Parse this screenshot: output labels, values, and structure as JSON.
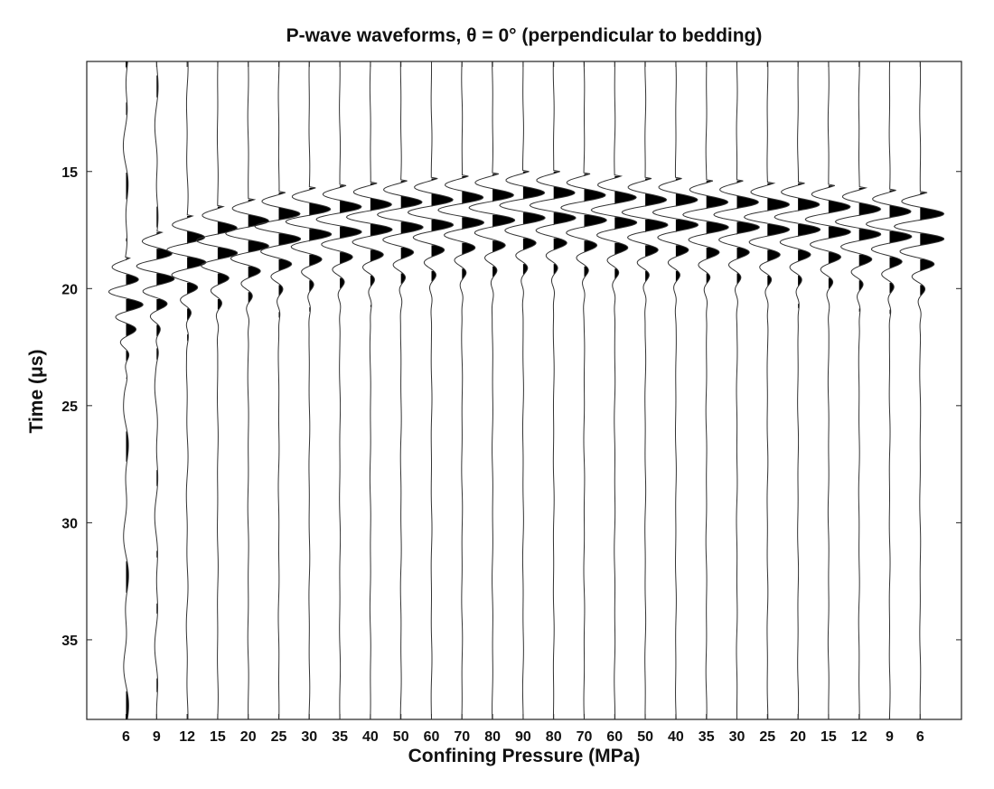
{
  "chart_data": {
    "type": "line",
    "title": "P-wave waveforms, θ = 0° (perpendicular to bedding)",
    "xlabel": "Confining Pressure (MPa)",
    "ylabel": "Time (μs)",
    "y_axis_inverted": true,
    "ylim": [
      10.3,
      38.4
    ],
    "y_ticks": [
      15,
      20,
      25,
      30,
      35
    ],
    "categories": [
      "6",
      "9",
      "12",
      "15",
      "20",
      "25",
      "30",
      "35",
      "40",
      "50",
      "60",
      "70",
      "80",
      "90",
      "80",
      "70",
      "60",
      "50",
      "40",
      "35",
      "30",
      "25",
      "20",
      "15",
      "12",
      "9",
      "6"
    ],
    "first_peak_time_us": [
      19.6,
      18.5,
      17.8,
      17.4,
      17.1,
      16.8,
      16.6,
      16.5,
      16.4,
      16.3,
      16.2,
      16.1,
      16.0,
      15.9,
      15.9,
      16.0,
      16.1,
      16.2,
      16.2,
      16.3,
      16.3,
      16.4,
      16.4,
      16.5,
      16.6,
      16.7,
      16.8
    ],
    "relative_amplitude": [
      0.7,
      0.8,
      0.85,
      0.9,
      0.95,
      1.0,
      1.0,
      1.0,
      1.0,
      1.0,
      1.0,
      1.0,
      1.0,
      1.0,
      1.0,
      1.0,
      1.0,
      1.0,
      1.0,
      1.0,
      1.0,
      1.0,
      1.0,
      1.0,
      1.0,
      1.0,
      1.1
    ],
    "fill": "positive-lobes-black",
    "grid": false,
    "legend": "none"
  }
}
